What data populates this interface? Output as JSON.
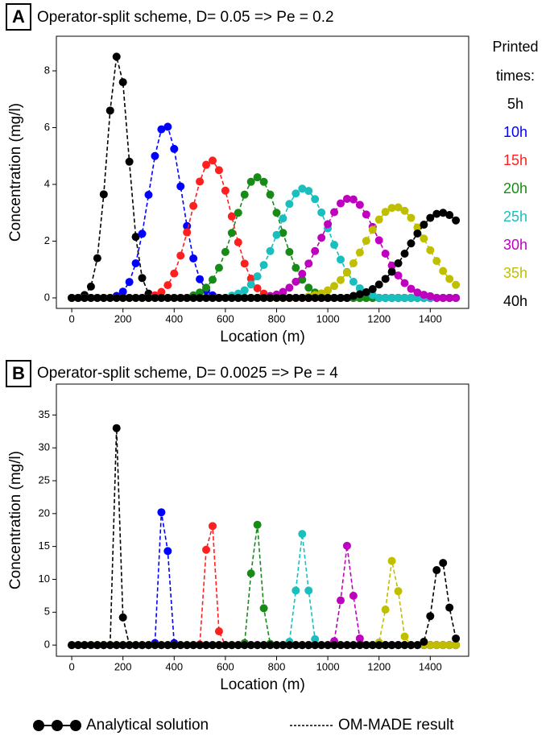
{
  "chart_data": [
    {
      "type": "line",
      "panel_label": "A",
      "title": "Operator-split scheme, D= 0.05 => Pe = 0.2",
      "x_label": "Location (m)",
      "y_label": "Concentration (mg/l)",
      "xlim": [
        -60,
        1550
      ],
      "ylim": [
        -0.37,
        9.22
      ],
      "xticks": [
        0,
        200,
        400,
        600,
        800,
        1000,
        1200,
        1400
      ],
      "yticks": [
        0,
        2,
        4,
        6,
        8
      ],
      "markers": true,
      "linestyle": "dashed",
      "legend": "right",
      "legend_title": "Printed times:",
      "x": [
        0,
        25,
        50,
        75,
        100,
        125,
        150,
        175,
        200,
        225,
        250,
        275,
        300,
        325,
        350,
        375,
        400,
        425,
        450,
        475,
        500,
        525,
        550,
        575,
        600,
        625,
        650,
        675,
        700,
        725,
        750,
        775,
        800,
        825,
        850,
        875,
        900,
        925,
        950,
        975,
        1000,
        1025,
        1050,
        1075,
        1100,
        1125,
        1150,
        1175,
        1200,
        1225,
        1250,
        1275,
        1300,
        1325,
        1350,
        1375,
        1400,
        1425,
        1450,
        1475,
        1500
      ],
      "series": [
        {
          "name": "5h",
          "color": "#000000",
          "values": [
            0,
            0,
            0.1,
            0.4,
            1.4,
            3.65,
            6.6,
            8.5,
            7.6,
            4.8,
            2.15,
            0.7,
            0.15,
            0,
            0,
            0,
            0,
            0,
            0,
            0,
            0,
            0,
            0,
            0,
            0,
            0,
            0,
            0,
            0,
            0,
            0,
            0,
            0,
            0,
            0,
            0,
            0,
            0,
            0,
            0,
            0,
            0,
            0,
            0,
            0,
            0,
            0,
            0,
            0,
            0,
            0,
            0,
            0,
            0,
            0,
            0,
            0,
            0,
            0,
            0,
            0
          ]
        },
        {
          "name": "10h",
          "color": "#0000ff",
          "values": [
            0,
            0,
            0,
            0,
            0,
            0,
            0,
            0.07,
            0.22,
            0.56,
            1.22,
            2.26,
            3.63,
            5.0,
            5.94,
            6.03,
            5.25,
            3.93,
            2.53,
            1.39,
            0.66,
            0.27,
            0.09,
            0,
            0,
            0,
            0,
            0,
            0,
            0,
            0,
            0,
            0,
            0,
            0,
            0,
            0,
            0,
            0,
            0,
            0,
            0,
            0,
            0,
            0,
            0,
            0,
            0,
            0,
            0,
            0,
            0,
            0,
            0,
            0,
            0,
            0,
            0,
            0,
            0,
            0
          ]
        },
        {
          "name": "15h",
          "color": "#ff1f1f",
          "values": [
            0,
            0,
            0,
            0,
            0,
            0,
            0,
            0,
            0,
            0,
            0,
            0,
            0,
            0.09,
            0.21,
            0.45,
            0.86,
            1.49,
            2.31,
            3.24,
            4.1,
            4.69,
            4.84,
            4.5,
            3.78,
            2.87,
            1.96,
            1.21,
            0.68,
            0.34,
            0.15,
            0.06,
            0,
            0,
            0,
            0,
            0,
            0,
            0,
            0,
            0,
            0,
            0,
            0,
            0,
            0,
            0,
            0,
            0,
            0,
            0,
            0,
            0,
            0,
            0,
            0,
            0,
            0,
            0,
            0,
            0
          ]
        },
        {
          "name": "20h",
          "color": "#168c16",
          "values": [
            0,
            0,
            0,
            0,
            0,
            0,
            0,
            0,
            0,
            0,
            0,
            0,
            0,
            0,
            0,
            0,
            0,
            0,
            0,
            0.09,
            0.19,
            0.36,
            0.64,
            1.06,
            1.62,
            2.29,
            3.0,
            3.64,
            4.09,
            4.25,
            4.09,
            3.64,
            3.0,
            2.29,
            1.62,
            1.06,
            0.64,
            0.36,
            0.19,
            0.09,
            0,
            0,
            0,
            0,
            0,
            0,
            0,
            0,
            0,
            0,
            0,
            0,
            0,
            0,
            0,
            0,
            0,
            0,
            0,
            0,
            0
          ]
        },
        {
          "name": "25h",
          "color": "#19bfbf",
          "values": [
            0,
            0,
            0,
            0,
            0,
            0,
            0,
            0,
            0,
            0,
            0,
            0,
            0,
            0,
            0,
            0,
            0,
            0,
            0,
            0,
            0,
            0,
            0,
            0,
            0,
            0.08,
            0.15,
            0.27,
            0.47,
            0.76,
            1.16,
            1.65,
            2.22,
            2.8,
            3.31,
            3.68,
            3.85,
            3.77,
            3.48,
            3.01,
            2.45,
            1.87,
            1.35,
            0.91,
            0.57,
            0.34,
            0.19,
            0.1,
            0,
            0,
            0,
            0,
            0,
            0,
            0,
            0,
            0,
            0,
            0,
            0,
            0
          ]
        },
        {
          "name": "30h",
          "color": "#bf00bf",
          "values": [
            0,
            0,
            0,
            0,
            0,
            0,
            0,
            0,
            0,
            0,
            0,
            0,
            0,
            0,
            0,
            0,
            0,
            0,
            0,
            0,
            0,
            0,
            0,
            0,
            0,
            0,
            0,
            0,
            0,
            0,
            0,
            0.07,
            0.12,
            0.21,
            0.36,
            0.57,
            0.85,
            1.21,
            1.65,
            2.12,
            2.6,
            3.02,
            3.33,
            3.49,
            3.47,
            3.28,
            2.94,
            2.5,
            2.03,
            1.56,
            1.14,
            0.79,
            0.52,
            0.32,
            0.19,
            0.11,
            0.06,
            0,
            0,
            0,
            0
          ]
        },
        {
          "name": "35h",
          "color": "#bfbf00",
          "values": [
            0,
            0,
            0,
            0,
            0,
            0,
            0,
            0,
            0,
            0,
            0,
            0,
            0,
            0,
            0,
            0,
            0,
            0,
            0,
            0,
            0,
            0,
            0,
            0,
            0,
            0,
            0,
            0,
            0,
            0,
            0,
            0,
            0,
            0,
            0,
            0,
            0,
            0.05,
            0.1,
            0.16,
            0.27,
            0.42,
            0.63,
            0.89,
            1.22,
            1.6,
            2.01,
            2.4,
            2.76,
            3.03,
            3.17,
            3.19,
            3.07,
            2.82,
            2.48,
            2.09,
            1.68,
            1.3,
            0.95,
            0.67,
            0.46
          ]
        },
        {
          "name": "40h",
          "color": "#000000",
          "values": [
            0,
            0,
            0,
            0,
            0,
            0,
            0,
            0,
            0,
            0,
            0,
            0,
            0,
            0,
            0,
            0,
            0,
            0,
            0,
            0,
            0,
            0,
            0,
            0,
            0,
            0,
            0,
            0,
            0,
            0,
            0,
            0,
            0,
            0,
            0,
            0,
            0,
            0,
            0,
            0,
            0,
            0,
            0,
            0,
            0.07,
            0.13,
            0.2,
            0.31,
            0.47,
            0.67,
            0.92,
            1.22,
            1.56,
            1.92,
            2.27,
            2.58,
            2.82,
            2.96,
            3.0,
            2.92,
            2.73
          ]
        }
      ]
    },
    {
      "type": "line",
      "panel_label": "B",
      "title": "Operator-split scheme, D= 0.0025 => Pe = 4",
      "x_label": "Location (m)",
      "y_label": "Concentration (mg/l)",
      "xlim": [
        -60,
        1550
      ],
      "ylim": [
        -1.7,
        39.7
      ],
      "xticks": [
        0,
        200,
        400,
        600,
        800,
        1000,
        1200,
        1400
      ],
      "yticks": [
        0,
        5,
        10,
        15,
        20,
        25,
        30,
        35
      ],
      "markers": true,
      "linestyle": "dashed",
      "x": [
        0,
        25,
        50,
        75,
        100,
        125,
        150,
        175,
        200,
        225,
        250,
        275,
        300,
        325,
        350,
        375,
        400,
        425,
        450,
        475,
        500,
        525,
        550,
        575,
        600,
        625,
        650,
        675,
        700,
        725,
        750,
        775,
        800,
        825,
        850,
        875,
        900,
        925,
        950,
        975,
        1000,
        1025,
        1050,
        1075,
        1100,
        1125,
        1150,
        1175,
        1200,
        1225,
        1250,
        1275,
        1300,
        1325,
        1350,
        1375,
        1400,
        1425,
        1450,
        1475,
        1500
      ],
      "series": [
        {
          "color": "#000000",
          "values": [
            0,
            0,
            0,
            0,
            0,
            0,
            0,
            33,
            4.2,
            0,
            0,
            0,
            0,
            0,
            0,
            0,
            0,
            0,
            0,
            0,
            0,
            0,
            0,
            0,
            0,
            0,
            0,
            0,
            0,
            0,
            0,
            0,
            0,
            0,
            0,
            0,
            0,
            0,
            0,
            0,
            0,
            0,
            0,
            0,
            0,
            0,
            0,
            0,
            0,
            0,
            0,
            0,
            0,
            0,
            0,
            0,
            0,
            0,
            0,
            0,
            0
          ]
        },
        {
          "color": "#0000ff",
          "values": [
            0,
            0,
            0,
            0,
            0,
            0,
            0,
            0,
            0,
            0,
            0,
            0,
            0,
            0.3,
            20.2,
            14.3,
            0.3,
            0,
            0,
            0,
            0,
            0,
            0,
            0,
            0,
            0,
            0,
            0,
            0,
            0,
            0,
            0,
            0,
            0,
            0,
            0,
            0,
            0,
            0,
            0,
            0,
            0,
            0,
            0,
            0,
            0,
            0,
            0,
            0,
            0,
            0,
            0,
            0,
            0,
            0,
            0,
            0,
            0,
            0,
            0,
            0
          ]
        },
        {
          "color": "#ff1f1f",
          "values": [
            0,
            0,
            0,
            0,
            0,
            0,
            0,
            0,
            0,
            0,
            0,
            0,
            0,
            0,
            0,
            0,
            0,
            0,
            0,
            0,
            0.1,
            14.5,
            18.1,
            2.1,
            0,
            0,
            0,
            0,
            0,
            0,
            0,
            0,
            0,
            0,
            0,
            0,
            0,
            0,
            0,
            0,
            0,
            0,
            0,
            0,
            0,
            0,
            0,
            0,
            0,
            0,
            0,
            0,
            0,
            0,
            0,
            0,
            0,
            0,
            0,
            0,
            0
          ]
        },
        {
          "color": "#168c16",
          "values": [
            0,
            0,
            0,
            0,
            0,
            0,
            0,
            0,
            0,
            0,
            0,
            0,
            0,
            0,
            0,
            0,
            0,
            0,
            0,
            0,
            0,
            0,
            0,
            0,
            0,
            0,
            0,
            0.3,
            10.9,
            18.3,
            5.6,
            0.2,
            0,
            0,
            0,
            0,
            0,
            0,
            0,
            0,
            0,
            0,
            0,
            0,
            0,
            0,
            0,
            0,
            0,
            0,
            0,
            0,
            0,
            0,
            0,
            0,
            0,
            0,
            0,
            0,
            0
          ]
        },
        {
          "color": "#19bfbf",
          "values": [
            0,
            0,
            0,
            0,
            0,
            0,
            0,
            0,
            0,
            0,
            0,
            0,
            0,
            0,
            0,
            0,
            0,
            0,
            0,
            0,
            0,
            0,
            0,
            0,
            0,
            0,
            0,
            0,
            0,
            0,
            0,
            0,
            0,
            0,
            0.5,
            8.3,
            16.9,
            8.3,
            0.9,
            0,
            0,
            0,
            0,
            0,
            0,
            0,
            0,
            0,
            0,
            0,
            0,
            0,
            0,
            0,
            0,
            0,
            0,
            0,
            0,
            0,
            0
          ]
        },
        {
          "color": "#bf00bf",
          "values": [
            0,
            0,
            0,
            0,
            0,
            0,
            0,
            0,
            0,
            0,
            0,
            0,
            0,
            0,
            0,
            0,
            0,
            0,
            0,
            0,
            0,
            0,
            0,
            0,
            0,
            0,
            0,
            0,
            0,
            0,
            0,
            0,
            0,
            0,
            0,
            0,
            0,
            0,
            0,
            0,
            0,
            0.6,
            6.8,
            15.1,
            7.5,
            1.0,
            0,
            0,
            0,
            0,
            0,
            0,
            0,
            0,
            0,
            0,
            0,
            0,
            0,
            0,
            0
          ]
        },
        {
          "color": "#bfbf00",
          "values": [
            0,
            0,
            0,
            0,
            0,
            0,
            0,
            0,
            0,
            0,
            0,
            0,
            0,
            0,
            0,
            0,
            0,
            0,
            0,
            0,
            0,
            0,
            0,
            0,
            0,
            0,
            0,
            0,
            0,
            0,
            0,
            0,
            0,
            0,
            0,
            0,
            0,
            0,
            0,
            0,
            0,
            0,
            0,
            0,
            0,
            0,
            0,
            0,
            0.4,
            5.4,
            12.8,
            8.2,
            1.3,
            0,
            0,
            0,
            0,
            0,
            0,
            0,
            0
          ]
        },
        {
          "color": "#000000",
          "values": [
            0,
            0,
            0,
            0,
            0,
            0,
            0,
            0,
            0,
            0,
            0,
            0,
            0,
            0,
            0,
            0,
            0,
            0,
            0,
            0,
            0,
            0,
            0,
            0,
            0,
            0,
            0,
            0,
            0,
            0,
            0,
            0,
            0,
            0,
            0,
            0,
            0,
            0,
            0,
            0,
            0,
            0,
            0,
            0,
            0,
            0,
            0,
            0,
            0,
            0,
            0,
            0,
            0,
            0,
            0,
            0.5,
            4.4,
            11.4,
            12.5,
            5.7,
            1.0
          ]
        }
      ]
    }
  ],
  "legend": {
    "markers": "Analytical solution",
    "line": "OM-MADE result"
  }
}
